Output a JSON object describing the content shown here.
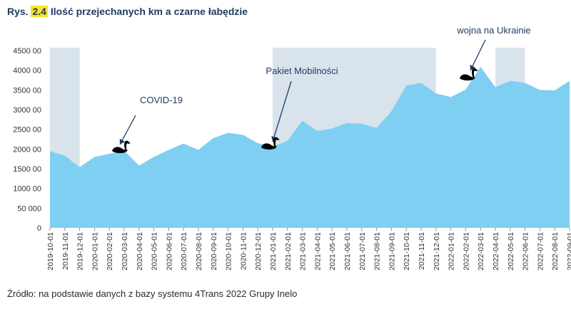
{
  "figure": {
    "prefix": "Rys.",
    "number": "2.4",
    "title": "Ilość przejechanych km a czarne łabędzie",
    "source": "Źródło: na podstawie danych z bazy systemu 4Trans 2022 Grupy Inelo"
  },
  "colors": {
    "area": "#7fcff2",
    "shade": "#d9e3ec",
    "title": "#1f3a5f",
    "highlight": "#f5e52b",
    "annotation": "#1f3a5f"
  },
  "chart_data": {
    "type": "area",
    "x": [
      "2019-10-01",
      "2019-11-01",
      "2019-12-01",
      "2020-01-01",
      "2020-02-01",
      "2020-03-01",
      "2020-04-01",
      "2020-05-01",
      "2020-06-01",
      "2020-07-01",
      "2020-08-01",
      "2020-09-01",
      "2020-10-01",
      "2020-11-01",
      "2020-12-01",
      "2021-01-01",
      "2021-02-01",
      "2021-03-01",
      "2021-04-01",
      "2021-05-01",
      "2021-06-01",
      "2021-07-01",
      "2021-08-01",
      "2021-09-01",
      "2021-10-01",
      "2021-11-01",
      "2021-12-01",
      "2022-01-01",
      "2022-02-01",
      "2022-03-01",
      "2022-04-01",
      "2022-05-01",
      "2022-06-01",
      "2022-07-01",
      "2022-08-01",
      "2022-09-01"
    ],
    "values": [
      1950000,
      1830000,
      1540000,
      1800000,
      1880000,
      1960000,
      1580000,
      1800000,
      1980000,
      2140000,
      1980000,
      2280000,
      2410000,
      2360000,
      2150000,
      2060000,
      2210000,
      2720000,
      2460000,
      2520000,
      2660000,
      2640000,
      2540000,
      2960000,
      3610000,
      3680000,
      3410000,
      3320000,
      3510000,
      4090000,
      3570000,
      3730000,
      3680000,
      3500000,
      3490000,
      3730000
    ],
    "y_ticks": [
      "0",
      "50 000",
      "1000 00",
      "1500 00",
      "2000 00",
      "2500 00",
      "3000 00",
      "3500 00",
      "4000 00",
      "4500 00"
    ],
    "ylim": [
      0,
      4500000
    ],
    "shaded_periods": [
      {
        "from": "2019-10-01",
        "to": "2019-12-01"
      },
      {
        "from": "2021-01-01",
        "to": "2021-12-01"
      },
      {
        "from": "2022-04-01",
        "to": "2022-06-01"
      }
    ],
    "annotations": [
      {
        "label": "COVID-19",
        "at": "2020-03-01"
      },
      {
        "label": "Pakiet Mobilności",
        "at": "2021-01-01"
      },
      {
        "label": "wojna na Ukrainie",
        "at": "2022-02-01"
      }
    ],
    "grid": false,
    "xlabel": "",
    "ylabel": ""
  }
}
